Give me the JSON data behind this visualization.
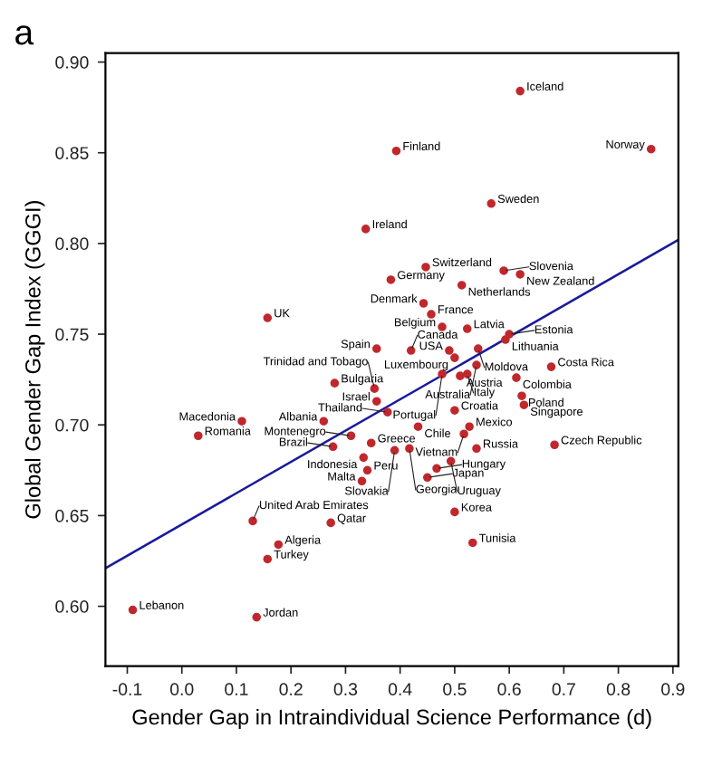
{
  "chart_data": {
    "type": "scatter",
    "xlabel": "Gender Gap in Intraindividual Science Performance (d)",
    "ylabel": "Global Gender Gap Index (GGGI)",
    "xlim": [
      -0.14,
      0.91
    ],
    "ylim": [
      0.567,
      0.905
    ],
    "xticks": [
      {
        "value": -0.1,
        "label": "-0.1"
      },
      {
        "value": 0.0,
        "label": "0.0"
      },
      {
        "value": 0.1,
        "label": "0.1"
      },
      {
        "value": 0.2,
        "label": "0.2"
      },
      {
        "value": 0.3,
        "label": "0.3"
      },
      {
        "value": 0.4,
        "label": "0.4"
      },
      {
        "value": 0.5,
        "label": "0.5"
      },
      {
        "value": 0.6,
        "label": "0.6"
      },
      {
        "value": 0.7,
        "label": "0.7"
      },
      {
        "value": 0.8,
        "label": "0.8"
      },
      {
        "value": 0.9,
        "label": "0.9"
      }
    ],
    "yticks": [
      {
        "value": 0.6,
        "label": "0.60"
      },
      {
        "value": 0.65,
        "label": "0.65"
      },
      {
        "value": 0.7,
        "label": "0.70"
      },
      {
        "value": 0.75,
        "label": "0.75"
      },
      {
        "value": 0.8,
        "label": "0.80"
      },
      {
        "value": 0.85,
        "label": "0.85"
      },
      {
        "value": 0.9,
        "label": "0.90"
      }
    ],
    "grid": false,
    "marker": "circle",
    "series": [
      {
        "color": "#c0282d",
        "x": [
          0.62,
          0.86,
          0.393,
          0.567,
          0.337,
          0.447,
          0.383,
          0.59,
          0.62,
          0.513,
          0.443,
          0.457,
          0.477,
          0.523,
          0.6,
          0.593,
          0.543,
          0.49,
          0.357,
          0.42,
          0.5,
          0.54,
          0.677,
          0.51,
          0.613,
          0.523,
          0.477,
          0.623,
          0.627,
          0.357,
          0.28,
          0.353,
          0.377,
          0.5,
          0.433,
          0.527,
          0.517,
          0.347,
          0.31,
          0.26,
          0.11,
          0.03,
          0.157,
          0.277,
          0.417,
          0.39,
          0.683,
          0.54,
          0.333,
          0.34,
          0.467,
          0.45,
          0.493,
          0.33,
          0.13,
          0.273,
          0.177,
          0.157,
          -0.09,
          0.137,
          0.5,
          0.533
        ],
        "values": [
          0.884,
          0.852,
          0.851,
          0.822,
          0.808,
          0.787,
          0.78,
          0.785,
          0.783,
          0.777,
          0.767,
          0.761,
          0.754,
          0.753,
          0.75,
          0.747,
          0.742,
          0.741,
          0.742,
          0.741,
          0.737,
          0.733,
          0.732,
          0.727,
          0.726,
          0.728,
          0.728,
          0.716,
          0.711,
          0.713,
          0.723,
          0.72,
          0.707,
          0.708,
          0.699,
          0.699,
          0.695,
          0.69,
          0.694,
          0.702,
          0.702,
          0.694,
          0.759,
          0.688,
          0.687,
          0.686,
          0.689,
          0.687,
          0.682,
          0.675,
          0.676,
          0.671,
          0.68,
          0.669,
          0.647,
          0.646,
          0.634,
          0.626,
          0.598,
          0.594,
          0.652,
          0.635
        ]
      },
      {
        "type": "line",
        "marker": "none",
        "color": "#1a1a9c",
        "x": [
          -0.14,
          0.91
        ],
        "values": [
          0.621,
          0.802
        ]
      }
    ],
    "annotations": [
      "a",
      {
        "text": "Iceland",
        "x": 0.62,
        "y": 0.884
      },
      {
        "text": "Norway",
        "x": 0.86,
        "y": 0.852
      },
      {
        "text": "Finland",
        "x": 0.393,
        "y": 0.851
      },
      {
        "text": "Sweden",
        "x": 0.567,
        "y": 0.822
      },
      {
        "text": "Ireland",
        "x": 0.337,
        "y": 0.808
      },
      {
        "text": "Switzerland",
        "x": 0.447,
        "y": 0.787
      },
      {
        "text": "Germany",
        "x": 0.383,
        "y": 0.78
      },
      {
        "text": "Slovenia",
        "x": 0.59,
        "y": 0.785
      },
      {
        "text": "New Zealand",
        "x": 0.62,
        "y": 0.783
      },
      {
        "text": "Netherlands",
        "x": 0.513,
        "y": 0.777
      },
      {
        "text": "Denmark",
        "x": 0.443,
        "y": 0.767
      },
      {
        "text": "France",
        "x": 0.457,
        "y": 0.761
      },
      {
        "text": "Belgium",
        "x": 0.477,
        "y": 0.754
      },
      {
        "text": "Latvia",
        "x": 0.523,
        "y": 0.753
      },
      {
        "text": "Estonia",
        "x": 0.6,
        "y": 0.75
      },
      {
        "text": "Lithuania",
        "x": 0.593,
        "y": 0.747
      },
      {
        "text": "Moldova",
        "x": 0.543,
        "y": 0.742
      },
      {
        "text": "USA",
        "x": 0.49,
        "y": 0.741
      },
      {
        "text": "Spain",
        "x": 0.357,
        "y": 0.742
      },
      {
        "text": "Canada",
        "x": 0.42,
        "y": 0.741
      },
      {
        "text": "Luxembourg",
        "x": 0.5,
        "y": 0.737
      },
      {
        "text": "Australia",
        "x": 0.54,
        "y": 0.733
      },
      {
        "text": "Costa Rica",
        "x": 0.677,
        "y": 0.732
      },
      {
        "text": "Austria",
        "x": 0.51,
        "y": 0.727
      },
      {
        "text": "Colombia",
        "x": 0.613,
        "y": 0.726
      },
      {
        "text": "Italy",
        "x": 0.523,
        "y": 0.728
      },
      {
        "text": "Portugal",
        "x": 0.477,
        "y": 0.728
      },
      {
        "text": "Poland",
        "x": 0.623,
        "y": 0.716
      },
      {
        "text": "Singapore",
        "x": 0.627,
        "y": 0.711
      },
      {
        "text": "Israel",
        "x": 0.357,
        "y": 0.713
      },
      {
        "text": "Bulgaria",
        "x": 0.28,
        "y": 0.723
      },
      {
        "text": "Trinidad and Tobago",
        "x": 0.353,
        "y": 0.72
      },
      {
        "text": "Thailand",
        "x": 0.377,
        "y": 0.707
      },
      {
        "text": "Croatia",
        "x": 0.5,
        "y": 0.708
      },
      {
        "text": "Chile",
        "x": 0.433,
        "y": 0.699
      },
      {
        "text": "Mexico",
        "x": 0.527,
        "y": 0.699
      },
      {
        "text": "Vietnam",
        "x": 0.517,
        "y": 0.695
      },
      {
        "text": "Greece",
        "x": 0.347,
        "y": 0.69
      },
      {
        "text": "Montenegro",
        "x": 0.31,
        "y": 0.694
      },
      {
        "text": "Albania",
        "x": 0.26,
        "y": 0.702
      },
      {
        "text": "Macedonia",
        "x": 0.11,
        "y": 0.702
      },
      {
        "text": "Romania",
        "x": 0.03,
        "y": 0.694
      },
      {
        "text": "UK",
        "x": 0.157,
        "y": 0.759
      },
      {
        "text": "Brazil",
        "x": 0.277,
        "y": 0.688
      },
      {
        "text": "Georgia",
        "x": 0.417,
        "y": 0.687
      },
      {
        "text": "Slovakia",
        "x": 0.39,
        "y": 0.686
      },
      {
        "text": "Czech Republic",
        "x": 0.683,
        "y": 0.689
      },
      {
        "text": "Russia",
        "x": 0.54,
        "y": 0.687
      },
      {
        "text": "Indonesia",
        "x": 0.333,
        "y": 0.682
      },
      {
        "text": "Peru",
        "x": 0.34,
        "y": 0.675
      },
      {
        "text": "Hungary",
        "x": 0.467,
        "y": 0.676
      },
      {
        "text": "Japan",
        "x": 0.45,
        "y": 0.671
      },
      {
        "text": "Uruguay",
        "x": 0.493,
        "y": 0.68
      },
      {
        "text": "Malta",
        "x": 0.33,
        "y": 0.669
      },
      {
        "text": "United Arab Emirates",
        "x": 0.13,
        "y": 0.647
      },
      {
        "text": "Qatar",
        "x": 0.273,
        "y": 0.646
      },
      {
        "text": "Algeria",
        "x": 0.177,
        "y": 0.634
      },
      {
        "text": "Turkey",
        "x": 0.157,
        "y": 0.626
      },
      {
        "text": "Lebanon",
        "x": -0.09,
        "y": 0.598
      },
      {
        "text": "Jordan",
        "x": 0.137,
        "y": 0.594
      },
      {
        "text": "Korea",
        "x": 0.5,
        "y": 0.652
      },
      {
        "text": "Tunisia",
        "x": 0.533,
        "y": 0.635
      }
    ]
  }
}
